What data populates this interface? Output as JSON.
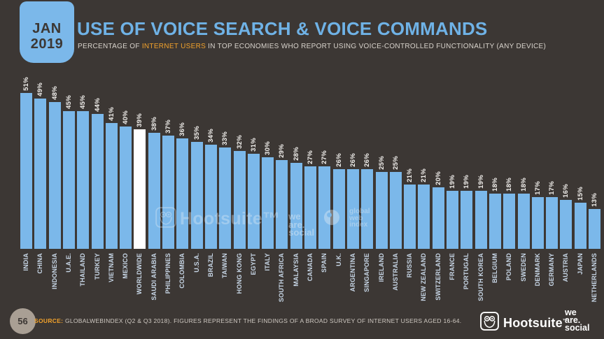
{
  "header": {
    "date_badge": {
      "month": "JAN",
      "year": "2019"
    },
    "title": "USE OF VOICE SEARCH & VOICE COMMANDS",
    "subtitle_prefix": "PERCENTAGE OF ",
    "subtitle_highlight": "INTERNET USERS",
    "subtitle_suffix": " IN TOP ECONOMIES WHO REPORT USING VOICE-CONTROLLED FUNCTIONALITY (ANY DEVICE)"
  },
  "chart_data": {
    "type": "bar",
    "title": "Use of voice search & voice commands (% of internet users, Jan 2019)",
    "unit": "%",
    "categories": [
      "INDIA",
      "CHINA",
      "INDONESIA",
      "U.A.E.",
      "THAILAND",
      "TURKEY",
      "VIETNAM",
      "MEXICO",
      "WORLDWIDE",
      "SAUDI ARABIA",
      "PHILIPPINES",
      "COLOMBIA",
      "U.S.A.",
      "BRAZIL",
      "TAIWAN",
      "HONG KONG",
      "EGYPT",
      "ITALY",
      "SOUTH AFRICA",
      "MALAYSIA",
      "CANADA",
      "SPAIN",
      "U.K.",
      "ARGENTINA",
      "SINGAPORE",
      "IRELAND",
      "AUSTRALIA",
      "RUSSIA",
      "NEW ZEALAND",
      "SWITZERLAND",
      "FRANCE",
      "PORTUGAL",
      "SOUTH KOREA",
      "BELGIUM",
      "POLAND",
      "SWEDEN",
      "DENMARK",
      "GERMANY",
      "AUSTRIA",
      "JAPAN",
      "NETHERLANDS"
    ],
    "values": [
      51,
      49,
      48,
      45,
      45,
      44,
      41,
      40,
      39,
      38,
      37,
      36,
      35,
      34,
      33,
      32,
      31,
      30,
      29,
      28,
      27,
      27,
      26,
      26,
      26,
      25,
      25,
      21,
      21,
      20,
      19,
      19,
      19,
      18,
      18,
      18,
      17,
      17,
      16,
      15,
      13
    ],
    "highlight_category": "WORLDWIDE",
    "bar_color": "#7BB8EA",
    "highlight_color": "#FFFFFF",
    "ylim": [
      0,
      55
    ],
    "grid": false,
    "legend": false,
    "value_label_rotation": -90,
    "category_label_rotation": -90
  },
  "watermark": {
    "hootsuite": "Hootsuite™",
    "weare": [
      "we",
      "are.",
      "social"
    ],
    "gwi": [
      "global",
      "web",
      "index"
    ]
  },
  "footer": {
    "page_number": "56",
    "source_label": "SOURCE:",
    "source_text": " GLOBALWEBINDEX (Q2 & Q3 2018). FIGURES REPRESENT THE FINDINGS OF A BROAD SURVEY OF INTERNET USERS AGED 16-64.",
    "hootsuite_label": "Hootsuite",
    "hootsuite_tm": "™",
    "weare_lines": [
      "we",
      "are.",
      "social"
    ]
  },
  "colors": {
    "background": "#3C3734",
    "bar": "#7BB8EA",
    "bar_highlight": "#FFFFFF",
    "accent_blue": "#6FB2E6",
    "accent_orange": "#F2A22B",
    "value_label": "#F3F1EE",
    "category_label": "#C7D6E6",
    "footer_text": "#CFC9C2",
    "page_circle": "#A99F94"
  }
}
